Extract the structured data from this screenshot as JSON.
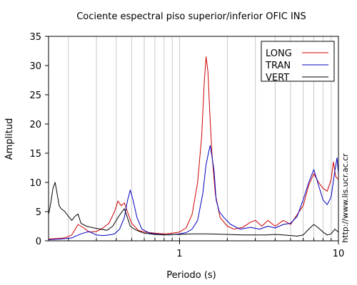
{
  "chart_data": {
    "type": "line",
    "title": "Cociente espectral piso superior/inferior  OFIC INS",
    "xlabel": "Periodo (s)",
    "ylabel": "Amplitud",
    "x_scale": "log",
    "xlim": [
      0.15,
      10
    ],
    "ylim": [
      0,
      35
    ],
    "x_tick_labels": [
      {
        "value": 1,
        "label": "1"
      },
      {
        "value": 10,
        "label": "10"
      }
    ],
    "y_ticks": [
      0,
      5,
      10,
      15,
      20,
      25,
      30,
      35
    ],
    "grid": "vertical",
    "legend_position": "top-right",
    "credit": "http://www.lis.ucr.ac.cr",
    "series": [
      {
        "name": "LONG",
        "color": "#d00000",
        "points": [
          [
            0.15,
            0.3
          ],
          [
            0.17,
            0.4
          ],
          [
            0.19,
            0.5
          ],
          [
            0.21,
            1.0
          ],
          [
            0.23,
            2.8
          ],
          [
            0.25,
            2.2
          ],
          [
            0.27,
            1.5
          ],
          [
            0.3,
            1.6
          ],
          [
            0.33,
            2.2
          ],
          [
            0.36,
            3.0
          ],
          [
            0.39,
            5.0
          ],
          [
            0.41,
            6.8
          ],
          [
            0.43,
            6.0
          ],
          [
            0.45,
            6.5
          ],
          [
            0.47,
            5.0
          ],
          [
            0.5,
            3.0
          ],
          [
            0.55,
            1.8
          ],
          [
            0.6,
            1.5
          ],
          [
            0.7,
            1.3
          ],
          [
            0.8,
            1.2
          ],
          [
            0.9,
            1.3
          ],
          [
            1.0,
            1.5
          ],
          [
            1.1,
            2.2
          ],
          [
            1.2,
            4.5
          ],
          [
            1.3,
            10.0
          ],
          [
            1.38,
            18.0
          ],
          [
            1.43,
            27.0
          ],
          [
            1.47,
            31.5
          ],
          [
            1.51,
            29.0
          ],
          [
            1.55,
            22.0
          ],
          [
            1.6,
            15.0
          ],
          [
            1.68,
            8.0
          ],
          [
            1.8,
            4.0
          ],
          [
            2.0,
            2.5
          ],
          [
            2.2,
            2.0
          ],
          [
            2.5,
            2.3
          ],
          [
            2.8,
            3.2
          ],
          [
            3.0,
            3.5
          ],
          [
            3.3,
            2.5
          ],
          [
            3.6,
            3.5
          ],
          [
            4.0,
            2.5
          ],
          [
            4.5,
            3.5
          ],
          [
            5.0,
            2.8
          ],
          [
            5.5,
            4.5
          ],
          [
            6.0,
            6.0
          ],
          [
            6.5,
            9.5
          ],
          [
            7.0,
            11.5
          ],
          [
            7.5,
            10.0
          ],
          [
            8.0,
            9.0
          ],
          [
            8.5,
            8.5
          ],
          [
            9.0,
            10.5
          ],
          [
            9.3,
            13.5
          ],
          [
            9.6,
            11.0
          ],
          [
            10.0,
            10.5
          ]
        ]
      },
      {
        "name": "TRAN",
        "color": "#0000c0",
        "points": [
          [
            0.15,
            0.2
          ],
          [
            0.18,
            0.3
          ],
          [
            0.21,
            0.5
          ],
          [
            0.24,
            1.2
          ],
          [
            0.27,
            1.6
          ],
          [
            0.3,
            1.0
          ],
          [
            0.33,
            0.9
          ],
          [
            0.36,
            1.0
          ],
          [
            0.39,
            1.2
          ],
          [
            0.42,
            2.0
          ],
          [
            0.45,
            4.0
          ],
          [
            0.47,
            6.8
          ],
          [
            0.49,
            8.7
          ],
          [
            0.51,
            7.0
          ],
          [
            0.54,
            4.0
          ],
          [
            0.58,
            2.0
          ],
          [
            0.65,
            1.3
          ],
          [
            0.75,
            1.1
          ],
          [
            0.85,
            1.0
          ],
          [
            1.0,
            1.2
          ],
          [
            1.1,
            1.4
          ],
          [
            1.2,
            2.0
          ],
          [
            1.3,
            3.5
          ],
          [
            1.4,
            8.0
          ],
          [
            1.47,
            13.0
          ],
          [
            1.52,
            15.0
          ],
          [
            1.56,
            16.3
          ],
          [
            1.6,
            14.5
          ],
          [
            1.65,
            12.0
          ],
          [
            1.7,
            7.0
          ],
          [
            1.78,
            5.0
          ],
          [
            1.9,
            4.0
          ],
          [
            2.1,
            2.8
          ],
          [
            2.4,
            2.0
          ],
          [
            2.8,
            2.3
          ],
          [
            3.2,
            2.0
          ],
          [
            3.6,
            2.5
          ],
          [
            4.0,
            2.2
          ],
          [
            4.5,
            2.8
          ],
          [
            5.0,
            3.0
          ],
          [
            5.5,
            4.2
          ],
          [
            6.0,
            7.0
          ],
          [
            6.5,
            10.0
          ],
          [
            7.0,
            12.2
          ],
          [
            7.5,
            9.5
          ],
          [
            8.0,
            7.0
          ],
          [
            8.5,
            6.2
          ],
          [
            9.0,
            7.5
          ],
          [
            9.5,
            12.0
          ],
          [
            9.8,
            14.2
          ],
          [
            10.0,
            11.5
          ]
        ]
      },
      {
        "name": "VERT",
        "color": "#000000",
        "points": [
          [
            0.15,
            4.5
          ],
          [
            0.155,
            6.5
          ],
          [
            0.16,
            9.0
          ],
          [
            0.165,
            10.0
          ],
          [
            0.17,
            8.0
          ],
          [
            0.175,
            6.0
          ],
          [
            0.18,
            5.5
          ],
          [
            0.19,
            5.0
          ],
          [
            0.2,
            4.2
          ],
          [
            0.21,
            3.5
          ],
          [
            0.22,
            4.2
          ],
          [
            0.23,
            4.6
          ],
          [
            0.24,
            3.0
          ],
          [
            0.26,
            2.5
          ],
          [
            0.29,
            2.2
          ],
          [
            0.32,
            2.0
          ],
          [
            0.35,
            1.8
          ],
          [
            0.38,
            2.5
          ],
          [
            0.41,
            4.0
          ],
          [
            0.43,
            4.8
          ],
          [
            0.45,
            5.5
          ],
          [
            0.47,
            4.0
          ],
          [
            0.49,
            2.5
          ],
          [
            0.52,
            2.0
          ],
          [
            0.56,
            1.6
          ],
          [
            0.6,
            1.3
          ],
          [
            0.7,
            1.1
          ],
          [
            0.8,
            1.0
          ],
          [
            0.9,
            1.1
          ],
          [
            1.0,
            1.1
          ],
          [
            1.2,
            1.2
          ],
          [
            1.5,
            1.2
          ],
          [
            2.0,
            1.1
          ],
          [
            2.5,
            1.0
          ],
          [
            3.0,
            1.0
          ],
          [
            3.5,
            1.0
          ],
          [
            4.0,
            1.1
          ],
          [
            4.5,
            1.0
          ],
          [
            5.0,
            0.9
          ],
          [
            5.5,
            0.8
          ],
          [
            6.0,
            1.0
          ],
          [
            6.5,
            2.0
          ],
          [
            7.0,
            2.8
          ],
          [
            7.5,
            2.2
          ],
          [
            8.0,
            1.5
          ],
          [
            8.5,
            1.0
          ],
          [
            9.0,
            1.2
          ],
          [
            9.5,
            2.0
          ],
          [
            10.0,
            1.5
          ]
        ]
      }
    ]
  }
}
